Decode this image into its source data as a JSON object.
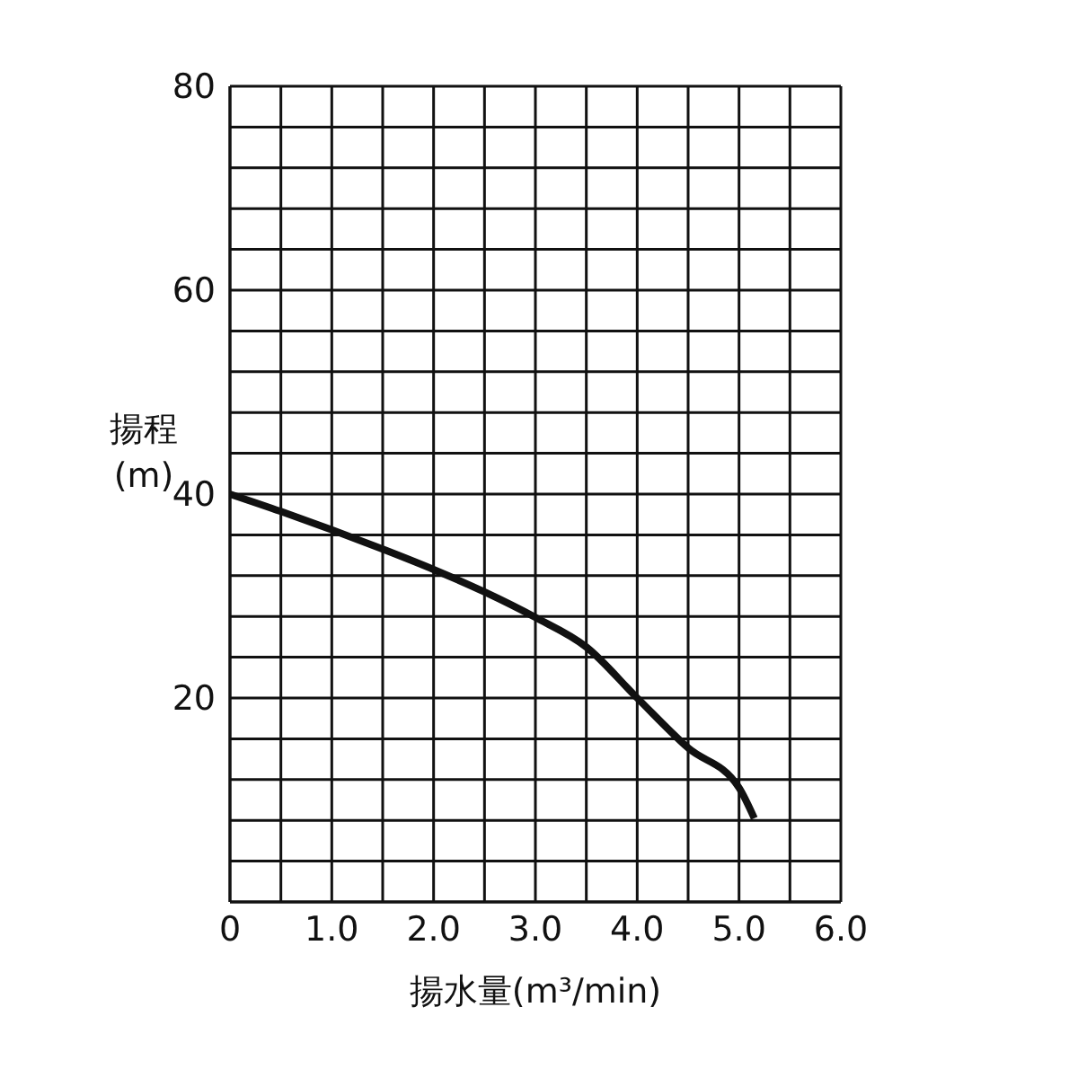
{
  "chart_data": {
    "type": "line",
    "xlabel": "揚水量(m³/min)",
    "ylabel": "揚程\n(m)",
    "x": [
      0,
      0.5,
      1,
      1.5,
      2,
      2.5,
      3,
      3.5,
      4,
      4.5,
      5,
      5.15
    ],
    "series": [
      {
        "color": "#111111",
        "values": [
          40,
          38.3,
          36.5,
          34.6,
          32.6,
          30.4,
          27.9,
          25,
          20,
          15.1,
          11.2,
          8.2
        ]
      }
    ],
    "xlim": [
      0,
      6
    ],
    "xticks": [
      0,
      {
        "value": 0.5,
        "label": null
      },
      {
        "value": 1,
        "label": "1.0"
      },
      {
        "value": 1.5,
        "label": null
      },
      {
        "value": 2,
        "label": "2.0"
      },
      {
        "value": 2.5,
        "label": null
      },
      {
        "value": 3,
        "label": "3.0"
      },
      {
        "value": 3.5,
        "label": null
      },
      {
        "value": 4,
        "label": "4.0"
      },
      {
        "value": 4.5,
        "label": null
      },
      {
        "value": 5,
        "label": "5.0"
      },
      {
        "value": 5.5,
        "label": null
      },
      {
        "value": 6,
        "label": "6.0"
      }
    ],
    "ylim": [
      0,
      80
    ],
    "yticks": [
      {
        "value": 0,
        "label": null
      },
      {
        "value": 4,
        "label": null
      },
      {
        "value": 8,
        "label": null
      },
      {
        "value": 12,
        "label": null
      },
      {
        "value": 16,
        "label": null
      },
      20,
      {
        "value": 24,
        "label": null
      },
      {
        "value": 28,
        "label": null
      },
      {
        "value": 32,
        "label": null
      },
      {
        "value": 36,
        "label": null
      },
      40,
      {
        "value": 44,
        "label": null
      },
      {
        "value": 48,
        "label": null
      },
      {
        "value": 52,
        "label": null
      },
      {
        "value": 56,
        "label": null
      },
      60,
      {
        "value": 64,
        "label": null
      },
      {
        "value": 68,
        "label": null
      },
      {
        "value": 72,
        "label": null
      },
      {
        "value": 76,
        "label": null
      },
      80
    ],
    "grid": true,
    "marker": "none",
    "line_style": "solid"
  }
}
